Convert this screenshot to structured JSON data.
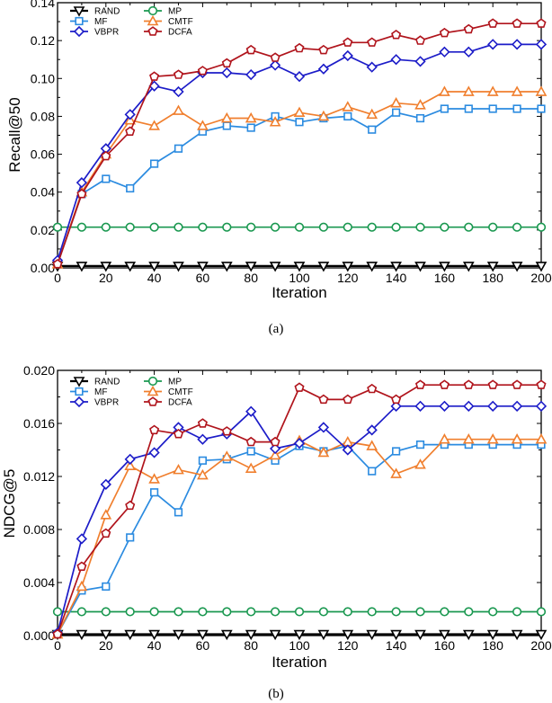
{
  "colors": {
    "RAND": "#000000",
    "MP": "#1a9850",
    "MF": "#2b8be0",
    "CMTF": "#f07f2e",
    "VBPR": "#1c1cc8",
    "DCFA": "#b0141c"
  },
  "chart_data": [
    {
      "type": "line",
      "caption": "(a)",
      "xlabel": "Iteration",
      "ylabel": "Recall@50",
      "xlim": [
        0,
        200
      ],
      "ylim": [
        0,
        0.14
      ],
      "x": [
        0,
        10,
        20,
        30,
        40,
        50,
        60,
        70,
        80,
        90,
        100,
        110,
        120,
        130,
        140,
        150,
        160,
        170,
        180,
        190,
        200
      ],
      "xticks": [
        "0",
        "20",
        "40",
        "60",
        "80",
        "100",
        "120",
        "140",
        "160",
        "180",
        "200"
      ],
      "yticks": [
        "0.00",
        "0.02",
        "0.04",
        "0.06",
        "0.08",
        "0.10",
        "0.12",
        "0.14"
      ],
      "series": [
        {
          "name": "RAND",
          "marker": "triangle-down",
          "values": [
            0.001,
            0.001,
            0.001,
            0.001,
            0.001,
            0.001,
            0.001,
            0.001,
            0.001,
            0.001,
            0.001,
            0.001,
            0.001,
            0.001,
            0.001,
            0.001,
            0.001,
            0.001,
            0.001,
            0.001,
            0.001
          ]
        },
        {
          "name": "MP",
          "marker": "circle",
          "values": [
            0.0215,
            0.0215,
            0.0215,
            0.0215,
            0.0215,
            0.0215,
            0.0215,
            0.0215,
            0.0215,
            0.0215,
            0.0215,
            0.0215,
            0.0215,
            0.0215,
            0.0215,
            0.0215,
            0.0215,
            0.0215,
            0.0215,
            0.0215,
            0.0215
          ]
        },
        {
          "name": "MF",
          "marker": "square",
          "values": [
            0.002,
            0.039,
            0.047,
            0.042,
            0.055,
            0.063,
            0.072,
            0.075,
            0.074,
            0.08,
            0.077,
            0.079,
            0.08,
            0.073,
            0.082,
            0.079,
            0.084,
            0.084,
            0.084,
            0.084,
            0.084
          ]
        },
        {
          "name": "CMTF",
          "marker": "triangle-up",
          "values": [
            0.002,
            0.04,
            0.06,
            0.078,
            0.075,
            0.083,
            0.075,
            0.079,
            0.079,
            0.077,
            0.082,
            0.08,
            0.085,
            0.081,
            0.087,
            0.086,
            0.093,
            0.093,
            0.093,
            0.093,
            0.093
          ]
        },
        {
          "name": "VBPR",
          "marker": "diamond",
          "values": [
            0.004,
            0.045,
            0.063,
            0.081,
            0.096,
            0.093,
            0.103,
            0.103,
            0.102,
            0.107,
            0.101,
            0.105,
            0.112,
            0.106,
            0.11,
            0.109,
            0.114,
            0.114,
            0.118,
            0.118,
            0.118
          ]
        },
        {
          "name": "DCFA",
          "marker": "pentagon",
          "values": [
            0.002,
            0.039,
            0.059,
            0.072,
            0.101,
            0.102,
            0.104,
            0.108,
            0.115,
            0.111,
            0.116,
            0.115,
            0.119,
            0.119,
            0.123,
            0.12,
            0.124,
            0.126,
            0.129,
            0.129,
            0.129
          ]
        }
      ]
    },
    {
      "type": "line",
      "caption": "(b)",
      "xlabel": "Iteration",
      "ylabel": "NDCG@5",
      "xlim": [
        0,
        200
      ],
      "ylim": [
        0,
        0.02
      ],
      "x": [
        0,
        10,
        20,
        30,
        40,
        50,
        60,
        70,
        80,
        90,
        100,
        110,
        120,
        130,
        140,
        150,
        160,
        170,
        180,
        190,
        200
      ],
      "xticks": [
        "0",
        "20",
        "40",
        "60",
        "80",
        "100",
        "120",
        "140",
        "160",
        "180",
        "200"
      ],
      "yticks": [
        "0.000",
        "0.004",
        "0.008",
        "0.012",
        "0.016",
        "0.020"
      ],
      "series": [
        {
          "name": "RAND",
          "marker": "triangle-down",
          "values": [
            0.0001,
            0.0001,
            0.0001,
            0.0001,
            0.0001,
            0.0001,
            0.0001,
            0.0001,
            0.0001,
            0.0001,
            0.0001,
            0.0001,
            0.0001,
            0.0001,
            0.0001,
            0.0001,
            0.0001,
            0.0001,
            0.0001,
            0.0001,
            0.0001
          ]
        },
        {
          "name": "MP",
          "marker": "circle",
          "values": [
            0.0018,
            0.0018,
            0.0018,
            0.0018,
            0.0018,
            0.0018,
            0.0018,
            0.0018,
            0.0018,
            0.0018,
            0.0018,
            0.0018,
            0.0018,
            0.0018,
            0.0018,
            0.0018,
            0.0018,
            0.0018,
            0.0018,
            0.0018,
            0.0018
          ]
        },
        {
          "name": "MF",
          "marker": "square",
          "values": [
            0.0001,
            0.0034,
            0.0037,
            0.0074,
            0.0108,
            0.0093,
            0.0132,
            0.0133,
            0.0139,
            0.0132,
            0.0143,
            0.0139,
            0.0143,
            0.0124,
            0.0139,
            0.0144,
            0.0144,
            0.0144,
            0.0144,
            0.0144,
            0.0144
          ]
        },
        {
          "name": "CMTF",
          "marker": "triangle-up",
          "values": [
            0.0001,
            0.0037,
            0.0091,
            0.0128,
            0.0118,
            0.0125,
            0.0121,
            0.0135,
            0.0126,
            0.0136,
            0.0147,
            0.0138,
            0.0146,
            0.0143,
            0.0122,
            0.0129,
            0.0148,
            0.0148,
            0.0148,
            0.0148,
            0.0148
          ]
        },
        {
          "name": "VBPR",
          "marker": "diamond",
          "values": [
            0.0002,
            0.0073,
            0.0114,
            0.0133,
            0.0138,
            0.0157,
            0.0148,
            0.0152,
            0.0169,
            0.0141,
            0.0145,
            0.0157,
            0.014,
            0.0155,
            0.0173,
            0.0173,
            0.0173,
            0.0173,
            0.0173,
            0.0173,
            0.0173
          ]
        },
        {
          "name": "DCFA",
          "marker": "pentagon",
          "values": [
            0.0001,
            0.0052,
            0.0077,
            0.0098,
            0.0155,
            0.0152,
            0.016,
            0.0154,
            0.0146,
            0.0146,
            0.0187,
            0.0178,
            0.0178,
            0.0186,
            0.0178,
            0.0189,
            0.0189,
            0.0189,
            0.0189,
            0.0189,
            0.0189
          ]
        }
      ]
    }
  ]
}
